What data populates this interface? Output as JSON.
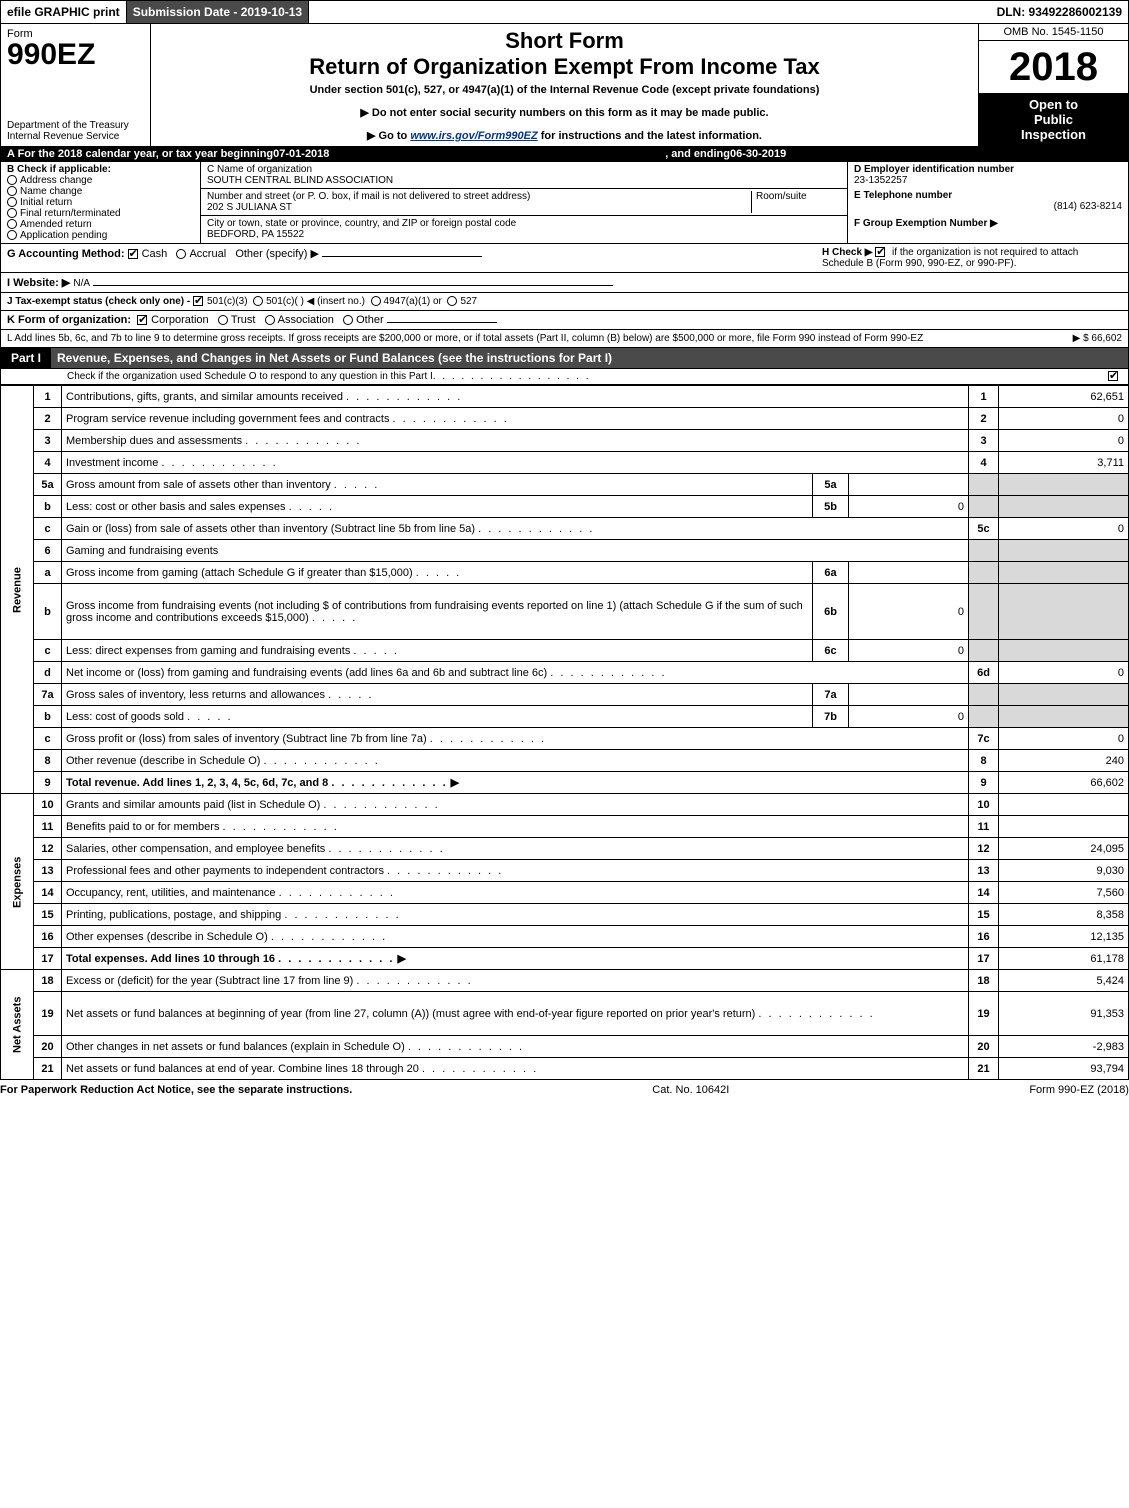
{
  "topbar": {
    "efile": "efile GRAPHIC print",
    "submission_label": "Submission Date - 2019-10-13",
    "dln_label": "DLN: 93492286002139"
  },
  "header": {
    "form_word": "Form",
    "form_number": "990EZ",
    "dept1": "Department of the Treasury",
    "dept2": "Internal Revenue Service",
    "title_short": "Short Form",
    "title_long": "Return of Organization Exempt From Income Tax",
    "subtitle": "Under section 501(c), 527, or 4947(a)(1) of the Internal Revenue Code (except private foundations)",
    "note1": "▶ Do not enter social security numbers on this form as it may be made public.",
    "note2_pre": "▶ Go to ",
    "note2_link": "www.irs.gov/Form990EZ",
    "note2_post": " for instructions and the latest information.",
    "omb": "OMB No. 1545-1150",
    "year": "2018",
    "inspect1": "Open to",
    "inspect2": "Public",
    "inspect3": "Inspection"
  },
  "period": {
    "prefix": "A   For the 2018 calendar year, or tax year beginning ",
    "begin": "07-01-2018",
    "mid": "   , and ending ",
    "end": "06-30-2019"
  },
  "box_b": {
    "heading": "B  Check if applicable:",
    "items": [
      "Address change",
      "Name change",
      "Initial return",
      "Final return/terminated",
      "Amended return",
      "Application pending"
    ]
  },
  "box_c": {
    "label_name": "C Name of organization",
    "org_name": "SOUTH CENTRAL BLIND ASSOCIATION",
    "label_street": "Number and street (or P. O. box, if mail is not delivered to street address)",
    "room_label": "Room/suite",
    "street": "202 S JULIANA ST",
    "label_city": "City or town, state or province, country, and ZIP or foreign postal code",
    "city": "BEDFORD, PA  15522"
  },
  "box_d": {
    "ein_label": "D Employer identification number",
    "ein": "23-1352257",
    "tel_label": "E Telephone number",
    "tel": "(814) 623-8214",
    "group_label": "F Group Exemption Number  ▶"
  },
  "line_g": {
    "label": "G Accounting Method:",
    "cash": "Cash",
    "accrual": "Accrual",
    "other": "Other (specify) ▶"
  },
  "line_h": {
    "label": "H  Check ▶",
    "text": "if the organization is not required to attach Schedule B (Form 990, 990-EZ, or 990-PF)."
  },
  "line_i": {
    "label": "I Website: ▶",
    "value": "N/A"
  },
  "line_j": {
    "label": "J Tax-exempt status (check only one) -",
    "opt1": "501(c)(3)",
    "opt2": "501(c)(  ) ◀ (insert no.)",
    "opt3": "4947(a)(1) or",
    "opt4": "527"
  },
  "line_k": {
    "label": "K Form of organization:",
    "opts": [
      "Corporation",
      "Trust",
      "Association",
      "Other"
    ]
  },
  "line_l": {
    "text": "L Add lines 5b, 6c, and 7b to line 9 to determine gross receipts. If gross receipts are $200,000 or more, or if total assets (Part II, column (B) below) are $500,000 or more, file Form 990 instead of Form 990-EZ",
    "amount": "▶ $ 66,602"
  },
  "part1": {
    "tab": "Part I",
    "title": "Revenue, Expenses, and Changes in Net Assets or Fund Balances (see the instructions for Part I)",
    "subline": "Check if the organization used Schedule O to respond to any question in this Part I"
  },
  "sections": {
    "revenue": "Revenue",
    "expenses": "Expenses",
    "netassets": "Net Assets"
  },
  "rows": [
    {
      "sec": "revenue",
      "n": "1",
      "label": "Contributions, gifts, grants, and similar amounts received",
      "rn": "1",
      "rv": "62,651"
    },
    {
      "sec": "revenue",
      "n": "2",
      "label": "Program service revenue including government fees and contracts",
      "rn": "2",
      "rv": "0"
    },
    {
      "sec": "revenue",
      "n": "3",
      "label": "Membership dues and assessments",
      "rn": "3",
      "rv": "0"
    },
    {
      "sec": "revenue",
      "n": "4",
      "label": "Investment income",
      "rn": "4",
      "rv": "3,711"
    },
    {
      "sec": "revenue",
      "n": "5a",
      "label": "Gross amount from sale of assets other than inventory",
      "in": "5a",
      "iv": "",
      "shadeR": true
    },
    {
      "sec": "revenue",
      "n": "b",
      "label": "Less: cost or other basis and sales expenses",
      "in": "5b",
      "iv": "0",
      "shadeR": true
    },
    {
      "sec": "revenue",
      "n": "c",
      "label": "Gain or (loss) from sale of assets other than inventory (Subtract line 5b from line 5a)",
      "rn": "5c",
      "rv": "0"
    },
    {
      "sec": "revenue",
      "n": "6",
      "label": "Gaming and fundraising events",
      "shadeR": true,
      "noInner": true
    },
    {
      "sec": "revenue",
      "n": "a",
      "label": "Gross income from gaming (attach Schedule G if greater than $15,000)",
      "in": "6a",
      "iv": "",
      "shadeR": true
    },
    {
      "sec": "revenue",
      "n": "b",
      "label": "Gross income from fundraising events (not including $              of contributions from fundraising events reported on line 1) (attach Schedule G if the sum of such gross income and contributions exceeds $15,000)",
      "in": "6b",
      "iv": "0",
      "shadeR": true,
      "tall": true
    },
    {
      "sec": "revenue",
      "n": "c",
      "label": "Less: direct expenses from gaming and fundraising events",
      "in": "6c",
      "iv": "0",
      "shadeR": true
    },
    {
      "sec": "revenue",
      "n": "d",
      "label": "Net income or (loss) from gaming and fundraising events (add lines 6a and 6b and subtract line 6c)",
      "rn": "6d",
      "rv": "0"
    },
    {
      "sec": "revenue",
      "n": "7a",
      "label": "Gross sales of inventory, less returns and allowances",
      "in": "7a",
      "iv": "",
      "shadeR": true
    },
    {
      "sec": "revenue",
      "n": "b",
      "label": "Less: cost of goods sold",
      "in": "7b",
      "iv": "0",
      "shadeR": true
    },
    {
      "sec": "revenue",
      "n": "c",
      "label": "Gross profit or (loss) from sales of inventory (Subtract line 7b from line 7a)",
      "rn": "7c",
      "rv": "0"
    },
    {
      "sec": "revenue",
      "n": "8",
      "label": "Other revenue (describe in Schedule O)",
      "rn": "8",
      "rv": "240"
    },
    {
      "sec": "revenue",
      "n": "9",
      "label": "Total revenue. Add lines 1, 2, 3, 4, 5c, 6d, 7c, and 8",
      "rn": "9",
      "rv": "66,602",
      "bold": true,
      "arrow": true
    },
    {
      "sec": "expenses",
      "n": "10",
      "label": "Grants and similar amounts paid (list in Schedule O)",
      "rn": "10",
      "rv": ""
    },
    {
      "sec": "expenses",
      "n": "11",
      "label": "Benefits paid to or for members",
      "rn": "11",
      "rv": ""
    },
    {
      "sec": "expenses",
      "n": "12",
      "label": "Salaries, other compensation, and employee benefits",
      "rn": "12",
      "rv": "24,095"
    },
    {
      "sec": "expenses",
      "n": "13",
      "label": "Professional fees and other payments to independent contractors",
      "rn": "13",
      "rv": "9,030"
    },
    {
      "sec": "expenses",
      "n": "14",
      "label": "Occupancy, rent, utilities, and maintenance",
      "rn": "14",
      "rv": "7,560"
    },
    {
      "sec": "expenses",
      "n": "15",
      "label": "Printing, publications, postage, and shipping",
      "rn": "15",
      "rv": "8,358"
    },
    {
      "sec": "expenses",
      "n": "16",
      "label": "Other expenses (describe in Schedule O)",
      "rn": "16",
      "rv": "12,135"
    },
    {
      "sec": "expenses",
      "n": "17",
      "label": "Total expenses. Add lines 10 through 16",
      "rn": "17",
      "rv": "61,178",
      "bold": true,
      "arrow": true
    },
    {
      "sec": "netassets",
      "n": "18",
      "label": "Excess or (deficit) for the year (Subtract line 17 from line 9)",
      "rn": "18",
      "rv": "5,424"
    },
    {
      "sec": "netassets",
      "n": "19",
      "label": "Net assets or fund balances at beginning of year (from line 27, column (A)) (must agree with end-of-year figure reported on prior year's return)",
      "rn": "19",
      "rv": "91,353",
      "tall": true
    },
    {
      "sec": "netassets",
      "n": "20",
      "label": "Other changes in net assets or fund balances (explain in Schedule O)",
      "rn": "20",
      "rv": "-2,983"
    },
    {
      "sec": "netassets",
      "n": "21",
      "label": "Net assets or fund balances at end of year. Combine lines 18 through 20",
      "rn": "21",
      "rv": "93,794"
    }
  ],
  "footer": {
    "left": "For Paperwork Reduction Act Notice, see the separate instructions.",
    "center": "Cat. No. 10642I",
    "right": "Form 990-EZ (2018)"
  },
  "colors": {
    "black": "#000000",
    "white": "#ffffff",
    "darkgray": "#4a4a4a",
    "shade": "#d9d9d9",
    "link": "#003399"
  }
}
